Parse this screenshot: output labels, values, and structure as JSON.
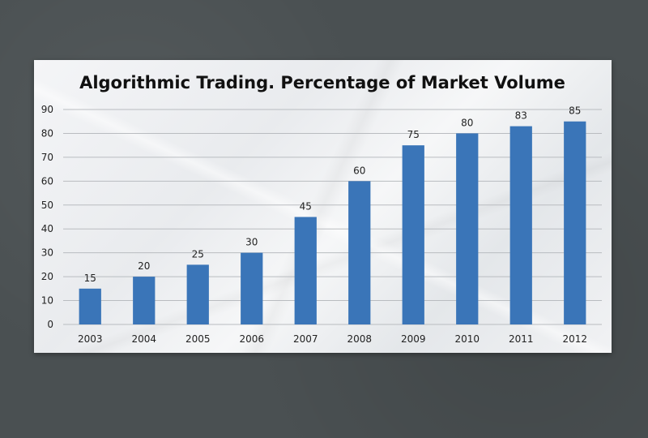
{
  "chart_data": {
    "type": "bar",
    "title": "Algorithmic Trading. Percentage of Market Volume",
    "categories": [
      "2003",
      "2004",
      "2005",
      "2006",
      "2007",
      "2008",
      "2009",
      "2010",
      "2011",
      "2012"
    ],
    "values": [
      15,
      20,
      25,
      30,
      45,
      60,
      75,
      80,
      83,
      85
    ],
    "data_labels": [
      "15",
      "20",
      "25",
      "30",
      "45",
      "60",
      "75",
      "80",
      "83",
      "85"
    ],
    "ylim": [
      0,
      90
    ],
    "yticks": [
      "0",
      "10",
      "20",
      "30",
      "40",
      "50",
      "60",
      "70",
      "80",
      "90"
    ],
    "grid": true,
    "legend": "none",
    "bar_color": "#3a75b8",
    "grid_color": "#b9bcc0",
    "background_color": "#4a5052"
  }
}
